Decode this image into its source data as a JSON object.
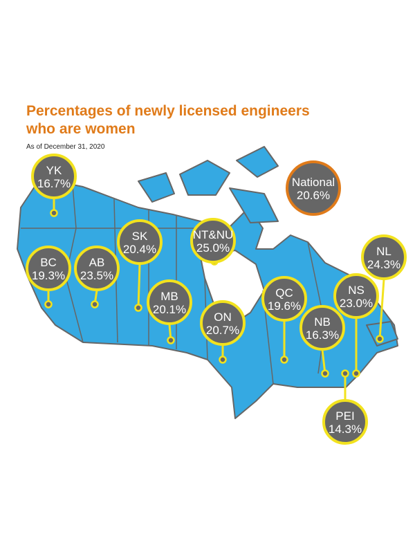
{
  "title": [
    "Percentages of newly licensed engineers",
    "who are women"
  ],
  "subtitle": "As of December 31, 2020",
  "national": {
    "label": "National",
    "percent": "20.6%"
  },
  "regions": [
    {
      "code": "YK",
      "percent": "16.7%"
    },
    {
      "code": "BC",
      "percent": "19.3%"
    },
    {
      "code": "AB",
      "percent": "23.5%"
    },
    {
      "code": "SK",
      "percent": "20.4%"
    },
    {
      "code": "NT&NU",
      "percent": "25.0%"
    },
    {
      "code": "MB",
      "percent": "20.1%"
    },
    {
      "code": "ON",
      "percent": "20.7%"
    },
    {
      "code": "QC",
      "percent": "19.6%"
    },
    {
      "code": "NB",
      "percent": "16.3%"
    },
    {
      "code": "NS",
      "percent": "23.0%"
    },
    {
      "code": "NL",
      "percent": "24.3%"
    },
    {
      "code": "PEI",
      "percent": "14.3%"
    }
  ]
}
